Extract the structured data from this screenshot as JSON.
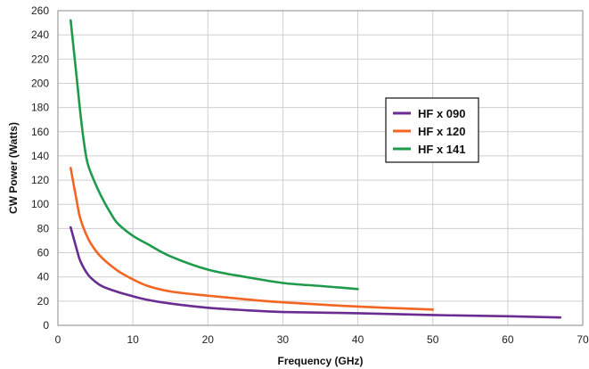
{
  "chart_data": {
    "type": "line",
    "title": "",
    "xlabel": "Frequency (GHz)",
    "ylabel": "CW Power (Watts)",
    "xlim": [
      0,
      70
    ],
    "ylim": [
      0,
      260
    ],
    "xticks": [
      0,
      10,
      20,
      30,
      40,
      50,
      60,
      70
    ],
    "yticks": [
      0,
      20,
      40,
      60,
      80,
      100,
      120,
      140,
      160,
      180,
      200,
      220,
      240,
      260
    ],
    "grid": true,
    "legend_position": "right",
    "series": [
      {
        "name": "HF x 090",
        "color": "#6a2c91",
        "x": [
          1.7,
          2.5,
          3,
          4,
          5,
          6,
          8,
          10,
          12,
          15,
          20,
          25,
          30,
          40,
          50,
          60,
          67
        ],
        "y": [
          81,
          63,
          53,
          42,
          36,
          32,
          27.5,
          24,
          21,
          18,
          14.5,
          12.5,
          11,
          10,
          8.5,
          7.5,
          6.5
        ]
      },
      {
        "name": "HF x 120",
        "color": "#f26522",
        "x": [
          1.7,
          2.5,
          3,
          4,
          5,
          6,
          8,
          10,
          12,
          15,
          20,
          25,
          30,
          40,
          50
        ],
        "y": [
          130,
          103,
          88,
          72,
          62,
          55,
          45,
          38,
          32.5,
          28,
          24.5,
          21.5,
          19,
          15.5,
          13
        ]
      },
      {
        "name": "HF x 141",
        "color": "#1e9a4b",
        "x": [
          1.7,
          2.5,
          3,
          3.5,
          4,
          5,
          6,
          7,
          8,
          10,
          12,
          15,
          20,
          25,
          30,
          35,
          40
        ],
        "y": [
          252,
          205,
          175,
          150,
          133,
          117,
          104,
          93,
          84,
          74,
          67,
          57,
          46,
          40,
          35,
          32.5,
          30
        ]
      }
    ]
  }
}
